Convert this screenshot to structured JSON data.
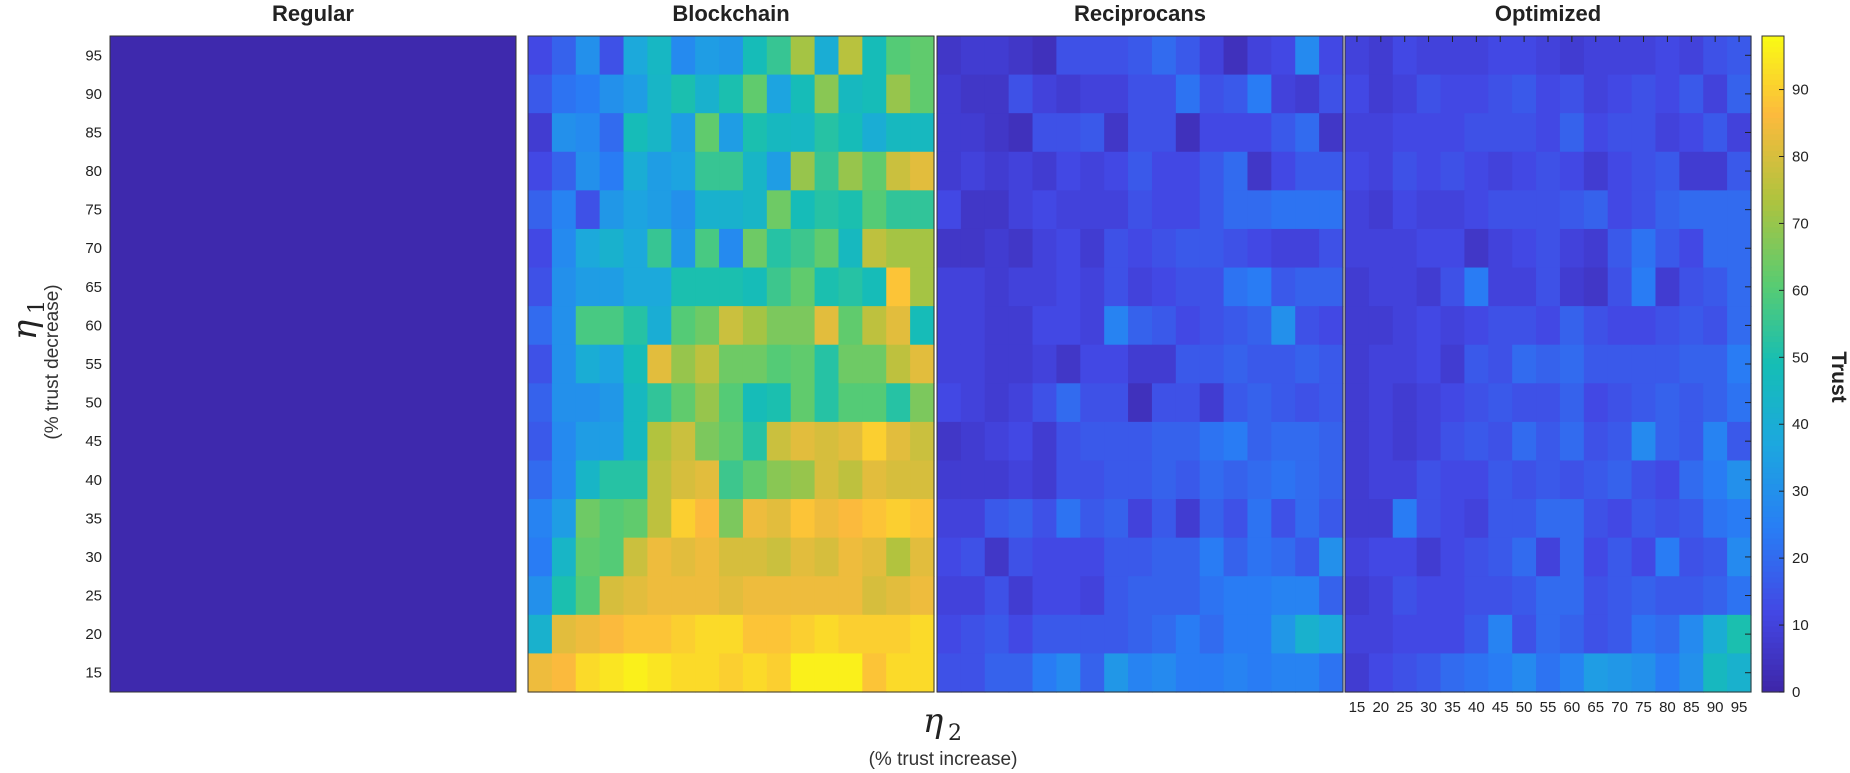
{
  "chart_data": {
    "type": "heatmap",
    "panels": [
      {
        "title": "Regular",
        "uniform_value": 1
      },
      {
        "title": "Blockchain",
        "values_top_to_bottom": [
          [
            12,
            18,
            30,
            14,
            38,
            45,
            28,
            34,
            32,
            48,
            55,
            72,
            40,
            75,
            48,
            60,
            62
          ],
          [
            16,
            22,
            24,
            30,
            34,
            44,
            50,
            42,
            50,
            62,
            36,
            48,
            68,
            46,
            48,
            70,
            62
          ],
          [
            8,
            30,
            28,
            20,
            48,
            44,
            34,
            62,
            34,
            50,
            46,
            45,
            52,
            48,
            40,
            46,
            46
          ],
          [
            12,
            18,
            30,
            24,
            40,
            34,
            36,
            55,
            55,
            44,
            34,
            70,
            55,
            70,
            62,
            78,
            82
          ],
          [
            18,
            26,
            14,
            32,
            36,
            34,
            30,
            42,
            42,
            44,
            64,
            48,
            52,
            50,
            60,
            54,
            54
          ],
          [
            12,
            28,
            38,
            42,
            38,
            55,
            32,
            58,
            28,
            64,
            52,
            56,
            62,
            46,
            76,
            72,
            72
          ],
          [
            14,
            30,
            34,
            34,
            38,
            38,
            50,
            50,
            50,
            48,
            56,
            62,
            50,
            52,
            48,
            88,
            72
          ],
          [
            20,
            30,
            58,
            58,
            52,
            40,
            60,
            64,
            78,
            72,
            66,
            66,
            82,
            62,
            76,
            82,
            48
          ],
          [
            14,
            30,
            40,
            36,
            48,
            82,
            70,
            76,
            64,
            64,
            60,
            62,
            52,
            64,
            64,
            76,
            82
          ],
          [
            18,
            30,
            30,
            32,
            46,
            54,
            62,
            70,
            60,
            48,
            50,
            62,
            52,
            60,
            60,
            52,
            66
          ],
          [
            16,
            28,
            34,
            34,
            46,
            74,
            78,
            66,
            62,
            52,
            78,
            82,
            80,
            82,
            90,
            82,
            78
          ],
          [
            20,
            28,
            44,
            52,
            52,
            76,
            80,
            82,
            56,
            62,
            68,
            70,
            80,
            76,
            82,
            80,
            80
          ],
          [
            26,
            34,
            64,
            60,
            62,
            76,
            90,
            86,
            66,
            84,
            82,
            88,
            84,
            86,
            88,
            90,
            88
          ],
          [
            24,
            44,
            62,
            60,
            78,
            84,
            82,
            84,
            80,
            80,
            78,
            82,
            80,
            84,
            82,
            74,
            82
          ],
          [
            30,
            50,
            60,
            80,
            82,
            84,
            84,
            84,
            82,
            84,
            84,
            84,
            84,
            84,
            80,
            82,
            84
          ],
          [
            42,
            82,
            84,
            86,
            88,
            88,
            90,
            92,
            92,
            88,
            88,
            90,
            92,
            90,
            90,
            90,
            92
          ],
          [
            84,
            86,
            92,
            94,
            96,
            94,
            92,
            92,
            90,
            92,
            90,
            96,
            96,
            96,
            88,
            92,
            92
          ]
        ]
      },
      {
        "title": "Reciprocans",
        "values_top_to_bottom": [
          [
            6,
            8,
            8,
            6,
            4,
            14,
            14,
            14,
            16,
            20,
            16,
            10,
            4,
            10,
            12,
            28,
            12
          ],
          [
            8,
            6,
            6,
            14,
            10,
            8,
            10,
            10,
            14,
            14,
            22,
            14,
            16,
            24,
            10,
            8,
            14
          ],
          [
            8,
            8,
            6,
            4,
            14,
            14,
            16,
            6,
            14,
            14,
            4,
            12,
            12,
            12,
            16,
            20,
            6
          ],
          [
            8,
            10,
            8,
            10,
            8,
            12,
            10,
            12,
            16,
            12,
            12,
            16,
            20,
            6,
            12,
            16,
            16
          ],
          [
            12,
            6,
            6,
            10,
            12,
            10,
            10,
            10,
            14,
            12,
            12,
            16,
            20,
            20,
            22,
            22,
            22
          ],
          [
            6,
            6,
            8,
            6,
            10,
            12,
            8,
            14,
            12,
            14,
            16,
            16,
            14,
            12,
            10,
            10,
            14
          ],
          [
            10,
            10,
            8,
            10,
            10,
            12,
            10,
            14,
            10,
            12,
            14,
            14,
            22,
            24,
            16,
            18,
            18
          ],
          [
            10,
            10,
            8,
            8,
            12,
            12,
            10,
            26,
            18,
            16,
            12,
            14,
            16,
            18,
            30,
            14,
            12
          ],
          [
            10,
            10,
            8,
            8,
            10,
            6,
            12,
            12,
            8,
            8,
            16,
            16,
            18,
            16,
            16,
            18,
            16
          ],
          [
            12,
            10,
            8,
            10,
            14,
            20,
            14,
            14,
            4,
            14,
            14,
            8,
            16,
            18,
            16,
            14,
            16
          ],
          [
            6,
            8,
            10,
            12,
            8,
            14,
            16,
            16,
            16,
            18,
            18,
            22,
            24,
            18,
            20,
            20,
            18
          ],
          [
            8,
            8,
            8,
            10,
            8,
            14,
            14,
            16,
            16,
            18,
            16,
            20,
            18,
            20,
            22,
            20,
            18
          ],
          [
            10,
            10,
            16,
            18,
            14,
            22,
            16,
            18,
            10,
            16,
            8,
            18,
            14,
            22,
            14,
            20,
            16
          ],
          [
            12,
            14,
            6,
            14,
            12,
            12,
            12,
            16,
            16,
            18,
            18,
            24,
            18,
            22,
            20,
            16,
            30
          ],
          [
            10,
            10,
            14,
            8,
            12,
            12,
            10,
            16,
            18,
            18,
            18,
            22,
            24,
            24,
            26,
            26,
            18
          ],
          [
            12,
            14,
            16,
            12,
            16,
            16,
            16,
            16,
            18,
            20,
            24,
            20,
            24,
            24,
            32,
            42,
            38
          ],
          [
            14,
            14,
            18,
            18,
            24,
            28,
            18,
            32,
            26,
            28,
            24,
            24,
            26,
            24,
            26,
            26,
            22
          ]
        ]
      },
      {
        "title": "Optimized",
        "values_top_to_bottom": [
          [
            10,
            8,
            12,
            10,
            10,
            10,
            12,
            12,
            10,
            8,
            10,
            10,
            10,
            12,
            10,
            14,
            16
          ],
          [
            12,
            8,
            10,
            14,
            12,
            12,
            14,
            16,
            12,
            14,
            10,
            12,
            14,
            12,
            16,
            10,
            18
          ],
          [
            10,
            10,
            12,
            12,
            12,
            14,
            14,
            14,
            12,
            18,
            12,
            14,
            14,
            10,
            12,
            16,
            10
          ],
          [
            12,
            10,
            14,
            12,
            14,
            12,
            10,
            12,
            14,
            12,
            8,
            12,
            14,
            16,
            8,
            8,
            16
          ],
          [
            10,
            8,
            12,
            10,
            10,
            12,
            14,
            14,
            14,
            16,
            18,
            12,
            14,
            18,
            20,
            20,
            20
          ],
          [
            10,
            10,
            10,
            12,
            12,
            6,
            10,
            12,
            14,
            10,
            8,
            16,
            22,
            16,
            12,
            20,
            20
          ],
          [
            8,
            10,
            10,
            8,
            14,
            24,
            10,
            10,
            14,
            8,
            6,
            14,
            24,
            8,
            14,
            16,
            20
          ],
          [
            8,
            8,
            10,
            12,
            10,
            12,
            14,
            14,
            12,
            18,
            14,
            12,
            12,
            14,
            16,
            14,
            20
          ],
          [
            8,
            10,
            10,
            12,
            8,
            16,
            14,
            20,
            18,
            20,
            16,
            16,
            16,
            16,
            18,
            18,
            24
          ],
          [
            8,
            10,
            8,
            10,
            12,
            14,
            16,
            14,
            14,
            18,
            12,
            14,
            16,
            18,
            16,
            18,
            22
          ],
          [
            8,
            10,
            8,
            10,
            14,
            16,
            14,
            20,
            16,
            20,
            14,
            16,
            28,
            18,
            16,
            26,
            16
          ],
          [
            8,
            10,
            10,
            14,
            12,
            12,
            16,
            14,
            16,
            14,
            16,
            18,
            14,
            12,
            20,
            24,
            30
          ],
          [
            8,
            8,
            24,
            14,
            12,
            10,
            16,
            16,
            20,
            20,
            14,
            12,
            16,
            14,
            16,
            22,
            24
          ],
          [
            10,
            12,
            12,
            8,
            12,
            14,
            16,
            20,
            10,
            20,
            12,
            16,
            12,
            24,
            14,
            16,
            28
          ],
          [
            8,
            10,
            14,
            12,
            12,
            14,
            14,
            16,
            20,
            20,
            14,
            16,
            18,
            16,
            16,
            18,
            22
          ],
          [
            10,
            10,
            12,
            12,
            12,
            16,
            26,
            14,
            20,
            18,
            14,
            16,
            22,
            20,
            28,
            40,
            50
          ],
          [
            8,
            12,
            14,
            16,
            20,
            22,
            24,
            28,
            22,
            26,
            34,
            32,
            30,
            24,
            30,
            46,
            42
          ]
        ]
      }
    ],
    "x_ticks": [
      "15",
      "20",
      "25",
      "30",
      "35",
      "40",
      "45",
      "50",
      "55",
      "60",
      "65",
      "70",
      "75",
      "80",
      "85",
      "90",
      "95"
    ],
    "y_ticks": [
      "95",
      "90",
      "85",
      "80",
      "75",
      "70",
      "65",
      "60",
      "55",
      "50",
      "45",
      "40",
      "35",
      "30",
      "25",
      "20",
      "15"
    ],
    "xlabel_symbol": "η",
    "xlabel_subscript": "2",
    "xlabel_text": "(% trust increase)",
    "ylabel_symbol": "η",
    "ylabel_subscript": "1",
    "ylabel_text": "(% trust decrease)",
    "colorbar": {
      "label": "Trust",
      "range": [
        0,
        98
      ],
      "ticks": [
        "0",
        "10",
        "20",
        "30",
        "40",
        "50",
        "60",
        "70",
        "80",
        "90"
      ],
      "colormap": "parula"
    }
  }
}
